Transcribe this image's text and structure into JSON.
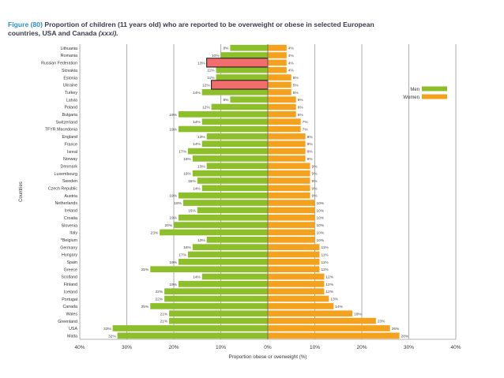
{
  "figure": {
    "label": "Figure",
    "number": "80",
    "title_line1": "Proportion of children (11 years old) who are reported to be overweight or obese in selected European",
    "title_line2": "countries, USA and Canada",
    "title_ref": "(xxxi)."
  },
  "chart_data": {
    "type": "bar",
    "orientation": "horizontal-diverging",
    "ylabel": "Countries",
    "xlabel": "Proportion obese or overweight (%)",
    "xlim": [
      -40,
      40
    ],
    "xticks": [
      -40,
      -30,
      -20,
      -10,
      0,
      10,
      20,
      30,
      40
    ],
    "xtick_labels": [
      "40%",
      "30%",
      "20%",
      "10%",
      "0%",
      "10%",
      "20%",
      "30%",
      "40%"
    ],
    "legend_position": "right",
    "grid": true,
    "categories": [
      "Lithuania",
      "Romania",
      "Russian Federation",
      "Slovakia",
      "Estonia",
      "Ukraine",
      "Turkey",
      "Latvia",
      "Poland",
      "Bulgaria",
      "Switzerland",
      "TFYR Macedonia",
      "England",
      "France",
      "Isreal",
      "Norway",
      "Denmark",
      "Luxembourg",
      "Sweden",
      "Czech Republic",
      "Austria",
      "Netherlands",
      "Ireland",
      "Croatia",
      "Slovenia",
      "Italy",
      "*Belgium",
      "Germany",
      "Hungary",
      "Spain",
      "Greece",
      "Scotland",
      "Finland",
      "Iceland",
      "Portugal",
      "Canada",
      "Wales",
      "Greenland",
      "USA",
      "Malta"
    ],
    "series": [
      {
        "name": "Men",
        "color": "#8cbf2a",
        "side": "left",
        "values": [
          8,
          10,
          13,
          11,
          11,
          12,
          14,
          8,
          12,
          19,
          14,
          19,
          13,
          14,
          17,
          16,
          13,
          16,
          15,
          14,
          19,
          18,
          15,
          19,
          20,
          23,
          13,
          16,
          17,
          19,
          25,
          14,
          19,
          22,
          22,
          25,
          21,
          21,
          33,
          32
        ],
        "labels": [
          "8%",
          "10%",
          "13%",
          "11%",
          "11%",
          "12%",
          "14%",
          "8%",
          "12%",
          "19%",
          "14%",
          "19%",
          "13%",
          "14%",
          "17%",
          "16%",
          "13%",
          "16%",
          "15%",
          "14%",
          "19%",
          "18%",
          "15%",
          "19%",
          "20%",
          "23%",
          "13%",
          "16%",
          "17%",
          "19%",
          "25%",
          "14%",
          "19%",
          "22%",
          "22%",
          "25%",
          "21%",
          "21%",
          "33%",
          "32%"
        ]
      },
      {
        "name": "Women",
        "color": "#f4a21e",
        "side": "right",
        "values": [
          4,
          4,
          4,
          4,
          5,
          5,
          5,
          6,
          6,
          6,
          7,
          7,
          8,
          8,
          8,
          8,
          9,
          9,
          9,
          9,
          9,
          10,
          10,
          10,
          10,
          10,
          10,
          11,
          11,
          11,
          11,
          12,
          12,
          12,
          13,
          14,
          18,
          23,
          26,
          28
        ],
        "labels": [
          "4%",
          "4%",
          "4%",
          "4%",
          "5%",
          "5%",
          "5%",
          "6%",
          "6%",
          "6%",
          "7%",
          "7%",
          "8%",
          "8%",
          "8%",
          "8%",
          "9%",
          "9%",
          "9%",
          "9%",
          "9%",
          "10%",
          "10%",
          "10%",
          "10%",
          "10%",
          "10%",
          "11%",
          "11%",
          "11%",
          "11%",
          "12%",
          "12%",
          "12%",
          "13%",
          "14%",
          "18%",
          "23%",
          "26%",
          "28%"
        ]
      }
    ],
    "highlight_boxes": [
      {
        "category": "Russian Federation",
        "x_from": -13,
        "x_to": 0,
        "color": "#f26d6d"
      },
      {
        "category": "Ukraine",
        "x_from": -12,
        "x_to": 0,
        "color": "#f26d6d"
      }
    ]
  }
}
